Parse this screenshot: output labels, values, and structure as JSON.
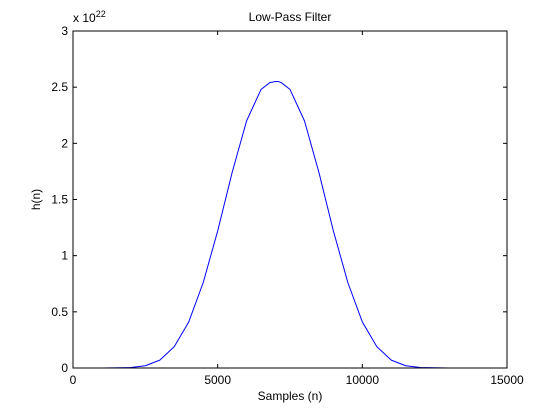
{
  "chart_data": {
    "type": "line",
    "title": "Low-Pass Filter",
    "xlabel": "Samples (n)",
    "ylabel": "h(n)",
    "xlim": [
      0,
      15000
    ],
    "ylim": [
      0,
      3
    ],
    "x_ticks": [
      0,
      5000,
      10000,
      15000
    ],
    "x_tick_labels": [
      "0",
      "5000",
      "10000",
      "15000"
    ],
    "y_ticks": [
      0,
      0.5,
      1,
      1.5,
      2,
      2.5,
      3
    ],
    "y_tick_labels": [
      "0",
      "0.5",
      "1",
      "1.5",
      "2",
      "2.5",
      "3"
    ],
    "y_multiplier_base": "x 10",
    "y_multiplier_exponent": "22",
    "grid": false,
    "legend": false,
    "colors": {
      "line": "#0000ff",
      "axes": "#000000",
      "background": "#ffffff"
    },
    "series": [
      {
        "x": [
          0,
          1000,
          2000,
          2500,
          3000,
          3500,
          4000,
          4500,
          5000,
          5500,
          6000,
          6500,
          6800,
          7000,
          7100,
          7200,
          7500,
          8000,
          8500,
          9000,
          9500,
          10000,
          10500,
          11000,
          11500,
          12000,
          13000,
          14000
        ],
        "y": [
          0,
          0,
          0.004,
          0.02,
          0.07,
          0.19,
          0.41,
          0.76,
          1.22,
          1.74,
          2.2,
          2.48,
          2.54,
          2.55,
          2.55,
          2.54,
          2.48,
          2.2,
          1.74,
          1.22,
          0.76,
          0.41,
          0.19,
          0.07,
          0.02,
          0.004,
          0,
          0
        ]
      }
    ]
  }
}
